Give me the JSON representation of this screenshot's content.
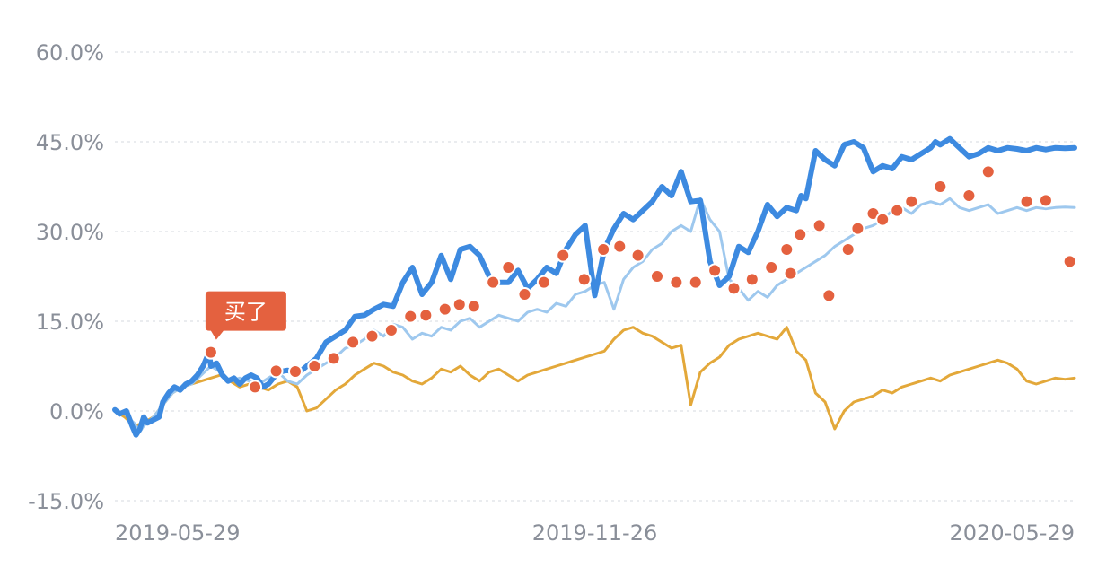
{
  "chart_data": {
    "type": "line",
    "ylim": [
      -15,
      60
    ],
    "y_ticks": [
      "-15.0%",
      "0.0%",
      "15.0%",
      "30.0%",
      "45.0%",
      "60.0%"
    ],
    "y_tick_values": [
      -15,
      0,
      15,
      30,
      45,
      60
    ],
    "x_ticks": [
      "2019-05-29",
      "2019-11-26",
      "2020-05-29"
    ],
    "x_tick_positions": [
      0,
      0.5,
      1
    ],
    "grid": true,
    "annotation": {
      "text": "买了",
      "x": 0.1,
      "y": 9.8
    },
    "colors": {
      "main": "#3d8ae0",
      "light": "#9ec8ee",
      "benchmark": "#e3a83a",
      "marker": "#e4613f",
      "callout": "#e4613f"
    },
    "series": [
      {
        "style": "thick",
        "x": [
          0,
          0.005,
          0.012,
          0.018,
          0.022,
          0.026,
          0.03,
          0.034,
          0.04,
          0.046,
          0.05,
          0.056,
          0.062,
          0.068,
          0.074,
          0.08,
          0.086,
          0.092,
          0.098,
          0.1,
          0.106,
          0.112,
          0.118,
          0.124,
          0.13,
          0.136,
          0.142,
          0.148,
          0.154,
          0.16,
          0.17,
          0.18,
          0.19,
          0.2,
          0.21,
          0.22,
          0.23,
          0.24,
          0.25,
          0.26,
          0.27,
          0.28,
          0.29,
          0.3,
          0.31,
          0.32,
          0.33,
          0.34,
          0.35,
          0.36,
          0.37,
          0.38,
          0.39,
          0.4,
          0.41,
          0.42,
          0.43,
          0.44,
          0.45,
          0.46,
          0.47,
          0.48,
          0.49,
          0.5,
          0.51,
          0.52,
          0.53,
          0.54,
          0.55,
          0.56,
          0.57,
          0.58,
          0.59,
          0.6,
          0.61,
          0.62,
          0.63,
          0.64,
          0.65,
          0.66,
          0.67,
          0.68,
          0.69,
          0.7,
          0.71,
          0.715,
          0.72,
          0.73,
          0.74,
          0.75,
          0.76,
          0.77,
          0.78,
          0.79,
          0.8,
          0.81,
          0.815,
          0.82,
          0.83,
          0.84,
          0.85,
          0.8525,
          0.855,
          0.86,
          0.87,
          0.88,
          0.89,
          0.9,
          0.91,
          0.92,
          0.93,
          0.94,
          0.95,
          0.96,
          0.97,
          0.98,
          0.99,
          1.0
        ],
        "y": [
          0.2,
          -0.5,
          0.0,
          -2.5,
          -4.0,
          -3.0,
          -1.0,
          -2.0,
          -1.5,
          -1.0,
          1.5,
          3.0,
          4.0,
          3.5,
          4.5,
          5.0,
          6.0,
          7.5,
          9.8,
          7.5,
          8.0,
          6.0,
          5.0,
          5.5,
          4.5,
          5.5,
          6.0,
          5.5,
          4.0,
          4.5,
          6.5,
          6.8,
          6.2,
          7.5,
          8.8,
          11.5,
          12.5,
          13.5,
          15.8,
          16.0,
          17.0,
          17.8,
          17.5,
          21.5,
          24.0,
          19.5,
          21.5,
          26.0,
          22.0,
          27.0,
          27.5,
          26.0,
          22.5,
          21.5,
          21.5,
          23.5,
          20.5,
          22.0,
          24.0,
          23.0,
          27.0,
          29.5,
          31.0,
          19.3,
          27.0,
          30.5,
          33.0,
          32.0,
          33.5,
          35.0,
          37.5,
          36.0,
          40.0,
          35.0,
          35.2,
          25.0,
          21.0,
          22.5,
          27.5,
          26.5,
          30.0,
          34.5,
          32.5,
          34.0,
          33.5,
          36.0,
          35.5,
          43.5,
          42.0,
          41.0,
          44.5,
          45.0,
          44.0,
          40.0,
          41.0,
          40.5,
          41.5,
          42.5,
          42.0,
          43.0,
          44.0,
          44.5,
          45.0,
          44.5,
          45.5,
          44.0,
          42.5,
          43.0,
          44.0,
          43.5,
          44.0,
          43.8,
          43.5,
          44.0,
          43.7,
          44.0,
          43.9,
          44.0
        ]
      },
      {
        "style": "thin-light",
        "x": [
          0,
          0.01,
          0.02,
          0.026,
          0.03,
          0.04,
          0.05,
          0.06,
          0.07,
          0.08,
          0.09,
          0.1,
          0.11,
          0.12,
          0.13,
          0.14,
          0.15,
          0.16,
          0.17,
          0.18,
          0.19,
          0.2,
          0.21,
          0.22,
          0.23,
          0.24,
          0.25,
          0.26,
          0.27,
          0.28,
          0.29,
          0.3,
          0.31,
          0.32,
          0.33,
          0.34,
          0.35,
          0.36,
          0.37,
          0.38,
          0.39,
          0.4,
          0.41,
          0.42,
          0.43,
          0.44,
          0.45,
          0.46,
          0.47,
          0.48,
          0.49,
          0.5,
          0.51,
          0.52,
          0.53,
          0.54,
          0.55,
          0.56,
          0.57,
          0.58,
          0.59,
          0.6,
          0.61,
          0.62,
          0.63,
          0.64,
          0.65,
          0.66,
          0.67,
          0.68,
          0.69,
          0.7,
          0.71,
          0.72,
          0.73,
          0.74,
          0.75,
          0.76,
          0.77,
          0.78,
          0.79,
          0.8,
          0.81,
          0.82,
          0.83,
          0.84,
          0.85,
          0.86,
          0.87,
          0.88,
          0.89,
          0.9,
          0.91,
          0.92,
          0.93,
          0.94,
          0.95,
          0.96,
          0.97,
          0.98,
          0.99,
          1.0
        ],
        "y": [
          0,
          -0.5,
          -2.0,
          -3.5,
          -2.5,
          -1.0,
          1.0,
          3.0,
          4.0,
          4.5,
          6.0,
          7.5,
          6.5,
          5.0,
          5.5,
          5.0,
          4.5,
          5.5,
          6.5,
          5.0,
          4.5,
          6.0,
          7.0,
          8.0,
          9.0,
          10.5,
          11.0,
          12.0,
          13.5,
          12.5,
          14.5,
          14.0,
          12.0,
          13.0,
          12.5,
          14.0,
          13.5,
          15.0,
          15.5,
          14.0,
          15.0,
          16.0,
          15.5,
          15.0,
          16.5,
          17.0,
          16.5,
          18.0,
          17.5,
          19.5,
          20.0,
          21.0,
          21.5,
          17.0,
          22.0,
          24.0,
          25.0,
          27.0,
          28.0,
          30.0,
          31.0,
          30.0,
          35.5,
          32.0,
          30.0,
          22.0,
          20.5,
          18.5,
          20.0,
          19.0,
          21.0,
          22.0,
          23.0,
          24.0,
          25.0,
          26.0,
          27.5,
          28.5,
          29.5,
          30.5,
          31.0,
          32.0,
          33.5,
          34.0,
          33.0,
          34.5,
          35.0,
          34.5,
          35.5,
          34.0,
          33.5,
          34.0,
          34.5,
          33.0,
          33.5,
          34.0,
          33.5,
          34.0,
          33.8,
          34.0,
          34.1,
          34.0
        ]
      },
      {
        "style": "thin-benchmark",
        "x": [
          0,
          0.01,
          0.02,
          0.03,
          0.04,
          0.05,
          0.06,
          0.07,
          0.08,
          0.09,
          0.1,
          0.11,
          0.12,
          0.13,
          0.14,
          0.15,
          0.16,
          0.17,
          0.18,
          0.19,
          0.2,
          0.21,
          0.22,
          0.23,
          0.24,
          0.25,
          0.26,
          0.27,
          0.28,
          0.29,
          0.3,
          0.31,
          0.32,
          0.33,
          0.34,
          0.35,
          0.36,
          0.37,
          0.38,
          0.39,
          0.4,
          0.41,
          0.42,
          0.43,
          0.44,
          0.45,
          0.46,
          0.47,
          0.48,
          0.49,
          0.5,
          0.51,
          0.52,
          0.53,
          0.54,
          0.55,
          0.56,
          0.57,
          0.58,
          0.59,
          0.6,
          0.61,
          0.62,
          0.63,
          0.64,
          0.65,
          0.66,
          0.67,
          0.68,
          0.69,
          0.7,
          0.71,
          0.72,
          0.73,
          0.74,
          0.75,
          0.76,
          0.77,
          0.78,
          0.79,
          0.8,
          0.81,
          0.82,
          0.83,
          0.84,
          0.85,
          0.86,
          0.87,
          0.88,
          0.89,
          0.9,
          0.91,
          0.92,
          0.93,
          0.94,
          0.95,
          0.96,
          0.97,
          0.98,
          0.99,
          1.0
        ],
        "y": [
          0,
          -1.0,
          -2.5,
          -2.0,
          -1.0,
          1.0,
          3.0,
          4.0,
          4.5,
          5.0,
          5.5,
          6.0,
          5.0,
          4.0,
          4.5,
          4.0,
          3.5,
          4.5,
          5.0,
          4.0,
          0.0,
          0.5,
          2.0,
          3.5,
          4.5,
          6.0,
          7.0,
          8.0,
          7.5,
          6.5,
          6.0,
          5.0,
          4.5,
          5.5,
          7.0,
          6.5,
          7.5,
          6.0,
          5.0,
          6.5,
          7.0,
          6.0,
          5.0,
          6.0,
          6.5,
          7.0,
          7.5,
          8.0,
          8.5,
          9.0,
          9.5,
          10.0,
          12.0,
          13.5,
          14.0,
          13.0,
          12.5,
          11.5,
          10.5,
          11.0,
          1.0,
          6.5,
          8.0,
          9.0,
          11.0,
          12.0,
          12.5,
          13.0,
          12.5,
          12.0,
          14.0,
          10.0,
          8.5,
          3.0,
          1.5,
          -3.0,
          0.0,
          1.5,
          2.0,
          2.5,
          3.5,
          3.0,
          4.0,
          4.5,
          5.0,
          5.5,
          5.0,
          6.0,
          6.5,
          7.0,
          7.5,
          8.0,
          8.5,
          8.0,
          7.0,
          5.0,
          4.5,
          5.0,
          5.5,
          5.3,
          5.5
        ]
      }
    ],
    "markers": {
      "x": [
        0.1,
        0.146,
        0.168,
        0.188,
        0.208,
        0.228,
        0.248,
        0.268,
        0.288,
        0.308,
        0.324,
        0.344,
        0.359,
        0.374,
        0.394,
        0.41,
        0.427,
        0.447,
        0.467,
        0.489,
        0.509,
        0.526,
        0.545,
        0.565,
        0.585,
        0.605,
        0.625,
        0.645,
        0.664,
        0.684,
        0.704,
        0.7,
        0.714,
        0.734,
        0.744,
        0.764,
        0.774,
        0.79,
        0.8,
        0.815,
        0.83,
        0.86,
        0.89,
        0.91,
        0.95,
        0.97,
        0.995
      ],
      "y": [
        9.8,
        4.0,
        6.7,
        6.6,
        7.5,
        8.8,
        11.5,
        12.5,
        13.5,
        15.8,
        16.0,
        17.0,
        17.8,
        17.5,
        21.5,
        24.0,
        19.5,
        21.5,
        26.0,
        22.0,
        27.0,
        27.5,
        26.0,
        22.5,
        21.5,
        21.5,
        23.5,
        20.5,
        22.0,
        24.0,
        23.0,
        27.0,
        29.5,
        31.0,
        19.3,
        27.0,
        30.5,
        33.0,
        32.0,
        33.5,
        35.0,
        37.5,
        36.0,
        40.0,
        35.0,
        35.2,
        25.0
      ]
    }
  }
}
